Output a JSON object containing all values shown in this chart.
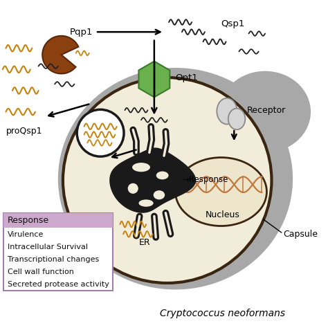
{
  "title": "Cryptococcus neoformans",
  "legend_title": "Response",
  "legend_items": [
    "Virulence",
    "Intracellular Survival",
    "Transcriptional changes",
    "Cell wall function",
    "Secreted protease activity"
  ],
  "labels": {
    "pqp1": "Pqp1",
    "qsp1": "Qsp1",
    "opt1": "Opt1",
    "proqsp1": "proQsp1",
    "receptor": "Receptor",
    "response": "→Response",
    "nucleus": "Nucleus",
    "er": "ER",
    "capsule": "Capsule"
  },
  "colors": {
    "background": "#ffffff",
    "capsule_gray": "#a0a0a0",
    "cell_body": "#f2ecda",
    "cell_outline": "#3a2510",
    "nucleus_fill": "#ede5cc",
    "opt1_green_light": "#6ab04c",
    "opt1_green_dark": "#3a7a28",
    "pqp1_brown": "#8b4010",
    "receptor_gray": "#c8c8c8",
    "receptor_edge": "#808080",
    "wavy_orange": "#c8820a",
    "wavy_black": "#222222",
    "arrow_color": "#111111",
    "dna_strand1": "#c07040",
    "dna_strand2": "#c07040",
    "legend_bg_title": "#c8a0c8",
    "legend_bg_body": "#ffffff",
    "legend_border": "#a080a0",
    "er_fill": "#1a1a1a",
    "er_lumen": "#f2ecda",
    "vacuole_fill": "#ffffff",
    "vacuole_edge": "#1a1a1a"
  },
  "fig_width": 4.74,
  "fig_height": 4.74,
  "dpi": 100
}
